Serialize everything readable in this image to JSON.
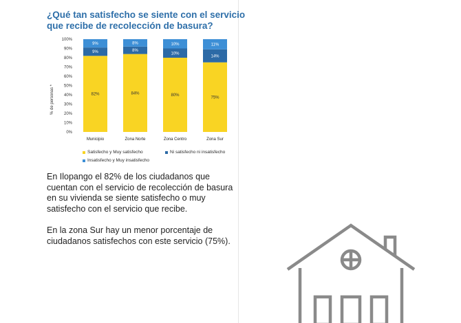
{
  "title": "¿Qué tan satisfecho se siente con el servicio que recibe de recolección de basura?",
  "chart_data": {
    "type": "bar",
    "stacked": true,
    "ylabel": "% de personas *",
    "xlabel": "",
    "ylim": [
      0,
      100
    ],
    "yticks": [
      "0%",
      "10%",
      "20%",
      "30%",
      "40%",
      "50%",
      "60%",
      "70%",
      "80%",
      "90%",
      "100%"
    ],
    "categories": [
      "Municipio",
      "Zona Norte",
      "Zona Centro",
      "Zona Sur"
    ],
    "series": [
      {
        "name": "Satisfecho y Muy satisfecho",
        "values": [
          82,
          84,
          80,
          75
        ],
        "labels": [
          "82%",
          "84%",
          "80%",
          "75%"
        ],
        "color": "#f9d423"
      },
      {
        "name": "Ni satisfecho ni insatisfecho",
        "values": [
          9,
          8,
          10,
          14
        ],
        "labels": [
          "9%",
          "8%",
          "10%",
          "14%"
        ],
        "color": "#2c6aa6"
      },
      {
        "name": "Insatisfecho y Muy insatisfecho",
        "values": [
          9,
          8,
          10,
          11
        ],
        "labels": [
          "9%",
          "8%",
          "10%",
          "11%"
        ],
        "color": "#3d8fd6"
      }
    ],
    "grid": false,
    "legend_position": "bottom"
  },
  "paragraphs": [
    "En Ilopango el 82% de los ciudadanos que cuentan con el servicio de recolección de basura en su vivienda se siente satisfecho o muy satisfecho con el servicio que recibe.",
    "En la zona Sur hay un menor porcentaje de ciudadanos satisfechos con este servicio (75%)."
  ],
  "decor": {
    "house_icon": "house-outline-icon",
    "house_color": "#8a8a8a"
  }
}
